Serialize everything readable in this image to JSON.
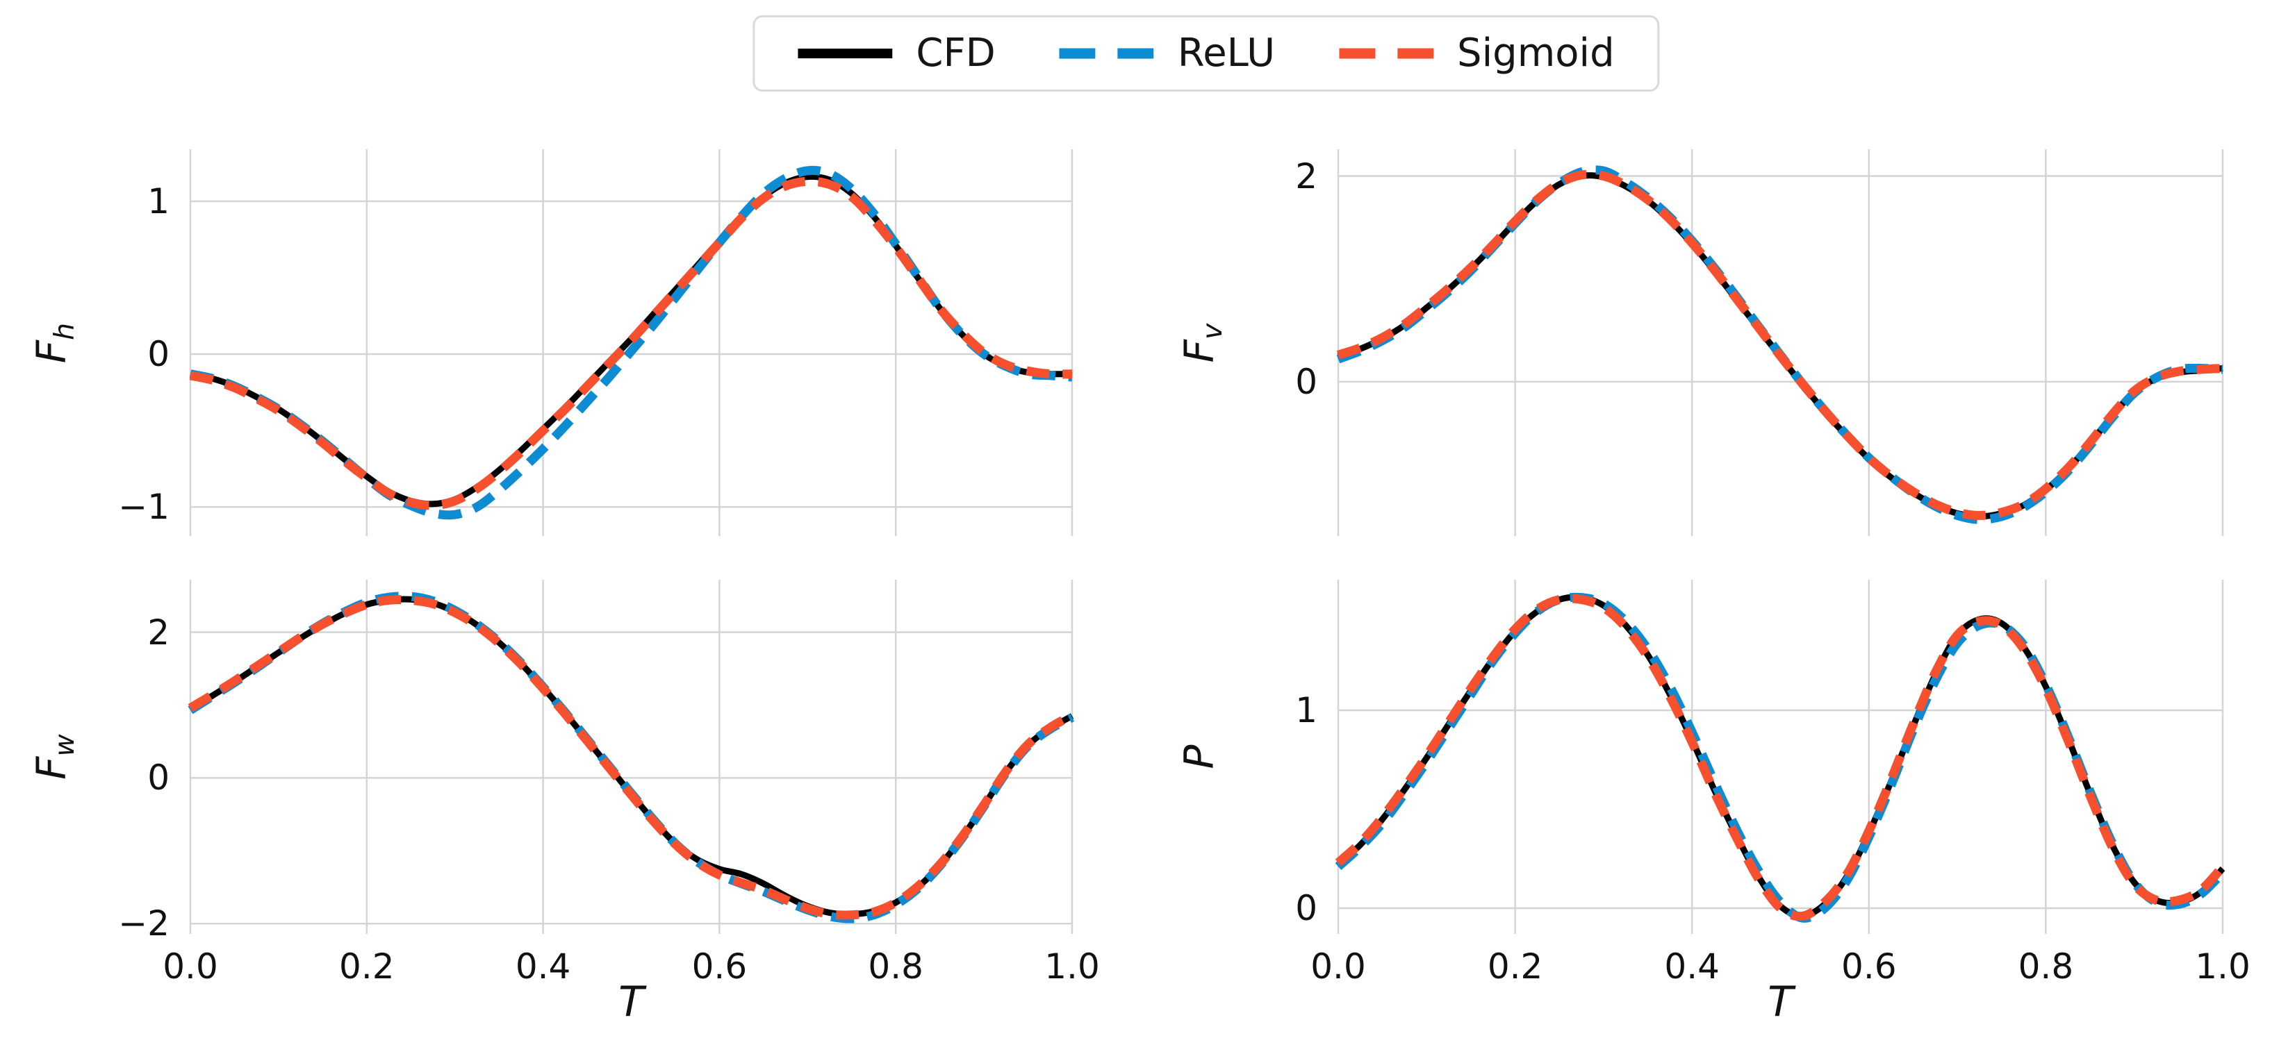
{
  "legend": {
    "position": "top-center",
    "items": [
      {
        "label": "CFD",
        "color": "#000000",
        "style": "solid"
      },
      {
        "label": "ReLU",
        "color": "#0d8bd3",
        "style": "dashed"
      },
      {
        "label": "Sigmoid",
        "color": "#f6502e",
        "style": "dashed"
      }
    ]
  },
  "axes": {
    "xlabel": "T",
    "xtick_values": [
      0.0,
      0.2,
      0.4,
      0.6,
      0.8,
      1.0
    ],
    "xticklabels": [
      "0.0",
      "0.2",
      "0.4",
      "0.6",
      "0.8",
      "1.0"
    ]
  },
  "colors": {
    "cfd": "#000000",
    "relu": "#0d8bd3",
    "sigmoid": "#f6502e",
    "grid": "#d4d4d4",
    "background": "#ffffff"
  },
  "chart_data": [
    {
      "type": "line",
      "ylabel": "F",
      "ylabel_sub": "h",
      "xlim": [
        0.0,
        1.0
      ],
      "ylim": [
        -1.19,
        1.34
      ],
      "yticks": [
        -1,
        0,
        1
      ],
      "yticklabels": [
        "−1",
        "0",
        "1"
      ],
      "grid": true,
      "x": [
        0,
        0.025,
        0.05,
        0.075,
        0.1,
        0.125,
        0.15,
        0.175,
        0.2,
        0.225,
        0.25,
        0.275,
        0.3,
        0.325,
        0.35,
        0.375,
        0.4,
        0.425,
        0.45,
        0.475,
        0.5,
        0.525,
        0.55,
        0.575,
        0.6,
        0.625,
        0.65,
        0.675,
        0.7,
        0.725,
        0.75,
        0.775,
        0.8,
        0.825,
        0.85,
        0.875,
        0.9,
        0.925,
        0.95,
        0.975,
        1.0
      ],
      "series": [
        {
          "name": "CFD",
          "color": "#000000",
          "style": "solid",
          "values": [
            -0.13,
            -0.16,
            -0.21,
            -0.28,
            -0.36,
            -0.46,
            -0.57,
            -0.69,
            -0.8,
            -0.9,
            -0.96,
            -0.98,
            -0.95,
            -0.87,
            -0.76,
            -0.63,
            -0.49,
            -0.35,
            -0.2,
            -0.05,
            0.1,
            0.26,
            0.42,
            0.58,
            0.74,
            0.9,
            1.03,
            1.12,
            1.16,
            1.14,
            1.05,
            0.9,
            0.71,
            0.5,
            0.3,
            0.13,
            0.0,
            -0.08,
            -0.12,
            -0.13,
            -0.13
          ]
        },
        {
          "name": "ReLU",
          "color": "#0d8bd3",
          "style": "dashed",
          "values": [
            -0.13,
            -0.16,
            -0.21,
            -0.28,
            -0.36,
            -0.46,
            -0.57,
            -0.69,
            -0.81,
            -0.92,
            -0.99,
            -1.04,
            -1.05,
            -1.0,
            -0.89,
            -0.76,
            -0.62,
            -0.47,
            -0.31,
            -0.15,
            0.02,
            0.19,
            0.37,
            0.55,
            0.73,
            0.9,
            1.05,
            1.15,
            1.2,
            1.18,
            1.08,
            0.92,
            0.72,
            0.51,
            0.3,
            0.13,
            0.0,
            -0.08,
            -0.13,
            -0.14,
            -0.15
          ]
        },
        {
          "name": "Sigmoid",
          "color": "#f6502e",
          "style": "dashed",
          "values": [
            -0.14,
            -0.17,
            -0.22,
            -0.29,
            -0.37,
            -0.47,
            -0.58,
            -0.7,
            -0.81,
            -0.91,
            -0.97,
            -0.99,
            -0.96,
            -0.88,
            -0.77,
            -0.64,
            -0.5,
            -0.36,
            -0.21,
            -0.06,
            0.09,
            0.25,
            0.41,
            0.57,
            0.73,
            0.89,
            1.02,
            1.1,
            1.13,
            1.11,
            1.03,
            0.88,
            0.7,
            0.5,
            0.3,
            0.14,
            0.01,
            -0.07,
            -0.11,
            -0.13,
            -0.13
          ]
        }
      ]
    },
    {
      "type": "line",
      "ylabel": "F",
      "ylabel_sub": "v",
      "xlim": [
        0.0,
        1.0
      ],
      "ylim": [
        -1.5,
        2.26
      ],
      "yticks": [
        0,
        2
      ],
      "yticklabels": [
        "0",
        "2"
      ],
      "grid": true,
      "x": [
        0,
        0.025,
        0.05,
        0.075,
        0.1,
        0.125,
        0.15,
        0.175,
        0.2,
        0.225,
        0.25,
        0.275,
        0.3,
        0.325,
        0.35,
        0.375,
        0.4,
        0.425,
        0.45,
        0.475,
        0.5,
        0.525,
        0.55,
        0.575,
        0.6,
        0.625,
        0.65,
        0.675,
        0.7,
        0.725,
        0.75,
        0.775,
        0.8,
        0.825,
        0.85,
        0.875,
        0.9,
        0.925,
        0.95,
        0.975,
        1.0
      ],
      "series": [
        {
          "name": "CFD",
          "color": "#000000",
          "style": "solid",
          "values": [
            0.25,
            0.32,
            0.42,
            0.55,
            0.72,
            0.9,
            1.1,
            1.32,
            1.55,
            1.76,
            1.92,
            2.0,
            1.99,
            1.9,
            1.76,
            1.57,
            1.34,
            1.08,
            0.8,
            0.52,
            0.24,
            -0.03,
            -0.29,
            -0.53,
            -0.75,
            -0.93,
            -1.08,
            -1.2,
            -1.28,
            -1.31,
            -1.28,
            -1.2,
            -1.05,
            -0.85,
            -0.6,
            -0.33,
            -0.1,
            0.03,
            0.09,
            0.11,
            0.13
          ]
        },
        {
          "name": "ReLU",
          "color": "#0d8bd3",
          "style": "dashed",
          "values": [
            0.22,
            0.3,
            0.4,
            0.53,
            0.7,
            0.88,
            1.08,
            1.31,
            1.54,
            1.76,
            1.93,
            2.04,
            2.05,
            1.94,
            1.79,
            1.6,
            1.37,
            1.11,
            0.83,
            0.54,
            0.26,
            -0.02,
            -0.28,
            -0.52,
            -0.74,
            -0.92,
            -1.08,
            -1.21,
            -1.3,
            -1.34,
            -1.31,
            -1.22,
            -1.07,
            -0.87,
            -0.62,
            -0.35,
            -0.11,
            0.04,
            0.12,
            0.13,
            0.12
          ]
        },
        {
          "name": "Sigmoid",
          "color": "#f6502e",
          "style": "dashed",
          "values": [
            0.26,
            0.33,
            0.43,
            0.56,
            0.73,
            0.91,
            1.11,
            1.33,
            1.56,
            1.77,
            1.93,
            2.01,
            2.0,
            1.91,
            1.77,
            1.58,
            1.35,
            1.09,
            0.81,
            0.53,
            0.25,
            -0.02,
            -0.28,
            -0.52,
            -0.74,
            -0.92,
            -1.07,
            -1.19,
            -1.27,
            -1.3,
            -1.27,
            -1.19,
            -1.04,
            -0.84,
            -0.59,
            -0.32,
            -0.09,
            0.04,
            0.1,
            0.12,
            0.13
          ]
        }
      ]
    },
    {
      "type": "line",
      "ylabel": "F",
      "ylabel_sub": "w",
      "xlim": [
        0.0,
        1.0
      ],
      "ylim": [
        -2.14,
        2.72
      ],
      "yticks": [
        -2,
        0,
        2
      ],
      "yticklabels": [
        "−2",
        "0",
        "2"
      ],
      "grid": true,
      "x": [
        0,
        0.025,
        0.05,
        0.075,
        0.1,
        0.125,
        0.15,
        0.175,
        0.2,
        0.225,
        0.25,
        0.275,
        0.3,
        0.325,
        0.35,
        0.375,
        0.4,
        0.425,
        0.45,
        0.475,
        0.5,
        0.525,
        0.55,
        0.575,
        0.6,
        0.625,
        0.65,
        0.675,
        0.7,
        0.725,
        0.75,
        0.775,
        0.8,
        0.825,
        0.85,
        0.875,
        0.9,
        0.925,
        0.95,
        0.975,
        1.0
      ],
      "series": [
        {
          "name": "CFD",
          "color": "#000000",
          "style": "solid",
          "values": [
            0.95,
            1.13,
            1.32,
            1.52,
            1.72,
            1.92,
            2.1,
            2.26,
            2.38,
            2.44,
            2.45,
            2.4,
            2.28,
            2.1,
            1.86,
            1.57,
            1.24,
            0.89,
            0.52,
            0.15,
            -0.22,
            -0.58,
            -0.9,
            -1.12,
            -1.25,
            -1.32,
            -1.45,
            -1.62,
            -1.76,
            -1.85,
            -1.87,
            -1.83,
            -1.71,
            -1.5,
            -1.2,
            -0.82,
            -0.38,
            0.08,
            0.45,
            0.68,
            0.85
          ]
        },
        {
          "name": "ReLU",
          "color": "#0d8bd3",
          "style": "dashed",
          "values": [
            0.93,
            1.12,
            1.31,
            1.51,
            1.72,
            1.93,
            2.12,
            2.28,
            2.41,
            2.48,
            2.49,
            2.43,
            2.3,
            2.11,
            1.87,
            1.58,
            1.25,
            0.9,
            0.53,
            0.16,
            -0.21,
            -0.57,
            -0.9,
            -1.15,
            -1.33,
            -1.45,
            -1.56,
            -1.69,
            -1.81,
            -1.9,
            -1.93,
            -1.88,
            -1.74,
            -1.52,
            -1.21,
            -0.83,
            -0.39,
            0.07,
            0.44,
            0.67,
            0.83
          ]
        },
        {
          "name": "Sigmoid",
          "color": "#f6502e",
          "style": "dashed",
          "values": [
            0.96,
            1.14,
            1.33,
            1.53,
            1.73,
            1.93,
            2.11,
            2.26,
            2.38,
            2.44,
            2.44,
            2.39,
            2.27,
            2.09,
            1.85,
            1.56,
            1.23,
            0.88,
            0.51,
            0.14,
            -0.23,
            -0.59,
            -0.91,
            -1.16,
            -1.33,
            -1.44,
            -1.54,
            -1.67,
            -1.79,
            -1.87,
            -1.88,
            -1.84,
            -1.71,
            -1.49,
            -1.19,
            -0.81,
            -0.37,
            0.09,
            0.46,
            0.69,
            0.86
          ]
        }
      ]
    },
    {
      "type": "line",
      "ylabel": "P",
      "ylabel_sub": "",
      "xlim": [
        0.0,
        1.0
      ],
      "ylim": [
        -0.13,
        1.66
      ],
      "yticks": [
        0,
        1
      ],
      "yticklabels": [
        "0",
        "1"
      ],
      "grid": true,
      "x": [
        0,
        0.025,
        0.05,
        0.075,
        0.1,
        0.125,
        0.15,
        0.175,
        0.2,
        0.225,
        0.25,
        0.275,
        0.3,
        0.325,
        0.35,
        0.375,
        0.4,
        0.425,
        0.45,
        0.475,
        0.5,
        0.525,
        0.55,
        0.575,
        0.6,
        0.625,
        0.65,
        0.675,
        0.7,
        0.725,
        0.75,
        0.775,
        0.8,
        0.825,
        0.85,
        0.875,
        0.9,
        0.925,
        0.95,
        0.975,
        1.0
      ],
      "series": [
        {
          "name": "CFD",
          "color": "#000000",
          "style": "solid",
          "values": [
            0.22,
            0.32,
            0.45,
            0.6,
            0.76,
            0.93,
            1.1,
            1.26,
            1.4,
            1.5,
            1.56,
            1.57,
            1.53,
            1.43,
            1.28,
            1.08,
            0.85,
            0.6,
            0.37,
            0.16,
            0.01,
            -0.04,
            0.02,
            0.16,
            0.38,
            0.64,
            0.92,
            1.18,
            1.38,
            1.46,
            1.44,
            1.32,
            1.12,
            0.86,
            0.58,
            0.32,
            0.13,
            0.04,
            0.03,
            0.08,
            0.2
          ]
        },
        {
          "name": "ReLU",
          "color": "#0d8bd3",
          "style": "dashed",
          "values": [
            0.21,
            0.31,
            0.43,
            0.58,
            0.74,
            0.91,
            1.08,
            1.25,
            1.39,
            1.5,
            1.56,
            1.57,
            1.54,
            1.45,
            1.31,
            1.12,
            0.89,
            0.64,
            0.4,
            0.19,
            0.03,
            -0.05,
            0.0,
            0.14,
            0.36,
            0.62,
            0.9,
            1.15,
            1.34,
            1.43,
            1.43,
            1.33,
            1.13,
            0.87,
            0.59,
            0.33,
            0.13,
            0.03,
            0.02,
            0.07,
            0.18
          ]
        },
        {
          "name": "Sigmoid",
          "color": "#f6502e",
          "style": "dashed",
          "values": [
            0.23,
            0.33,
            0.46,
            0.61,
            0.77,
            0.94,
            1.11,
            1.27,
            1.41,
            1.51,
            1.56,
            1.56,
            1.52,
            1.42,
            1.27,
            1.07,
            0.84,
            0.59,
            0.36,
            0.15,
            0.0,
            -0.04,
            0.03,
            0.17,
            0.39,
            0.65,
            0.93,
            1.19,
            1.38,
            1.45,
            1.43,
            1.31,
            1.11,
            0.85,
            0.57,
            0.31,
            0.12,
            0.04,
            0.04,
            0.09,
            0.21
          ]
        }
      ]
    }
  ]
}
